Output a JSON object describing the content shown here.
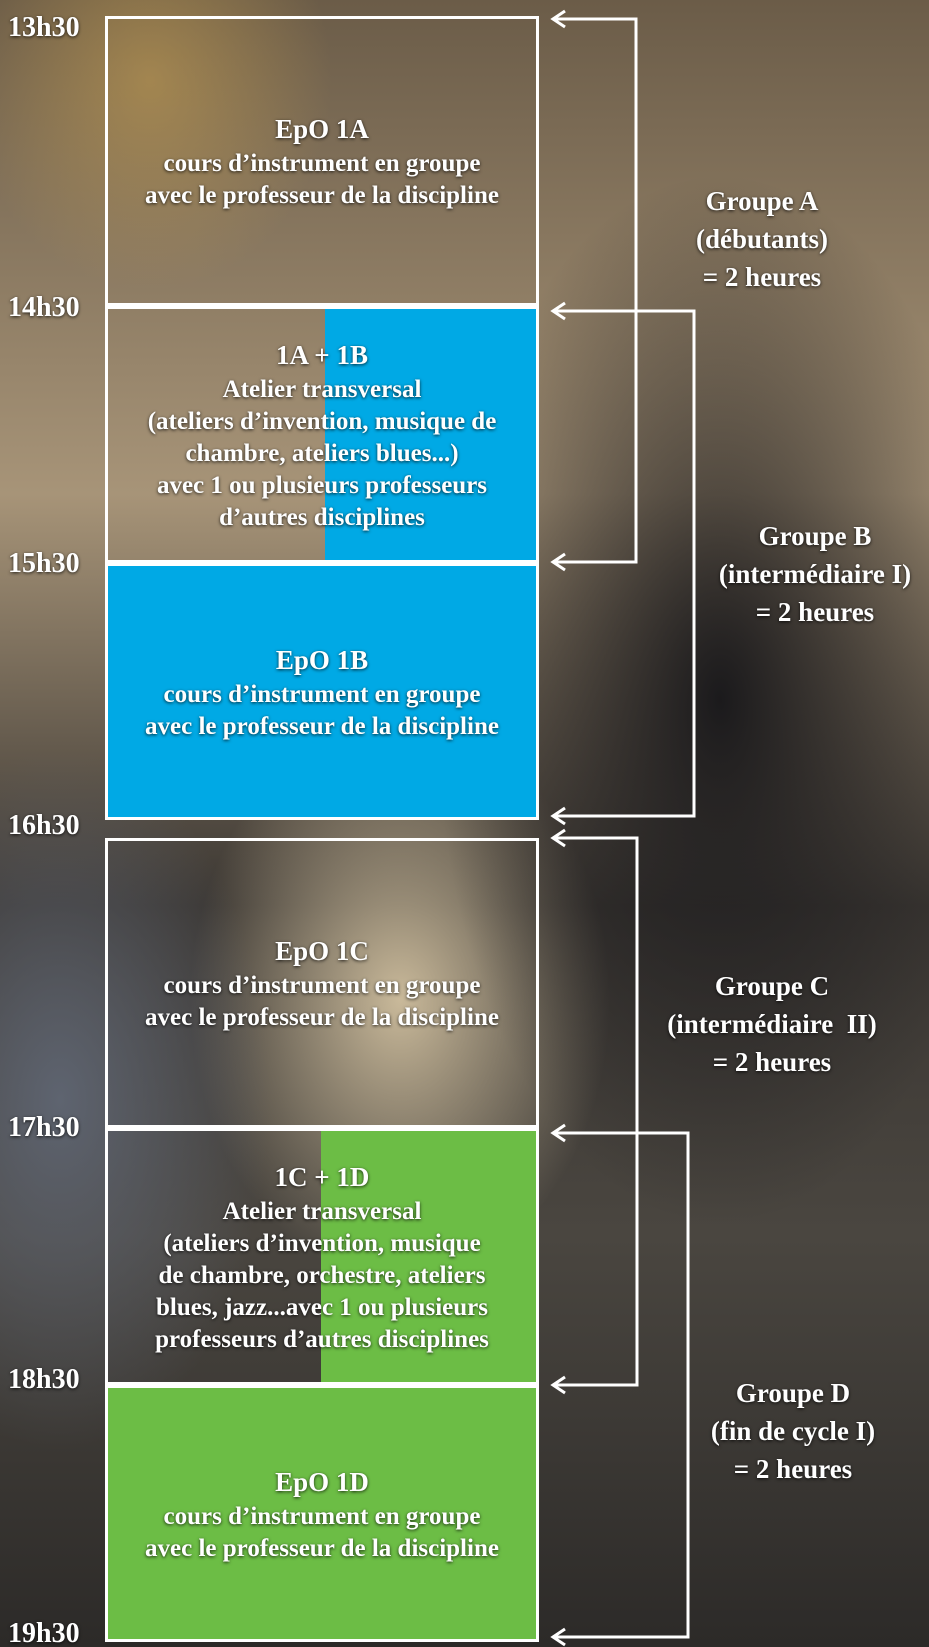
{
  "time_labels": [
    "13h30",
    "14h30",
    "15h30",
    "16h30",
    "17h30",
    "18h30",
    "19h30"
  ],
  "blocks": [
    {
      "title": "EpO 1A",
      "lines": [
        "cours d’instrument en groupe",
        "avec le professeur de la discipline"
      ]
    },
    {
      "title": "1A + 1B",
      "lines": [
        "Atelier transversal",
        "(ateliers d’invention, musique de",
        "chambre, ateliers blues...)",
        "avec 1 ou plusieurs professeurs",
        "d’autres disciplines"
      ]
    },
    {
      "title": "EpO 1B",
      "lines": [
        "cours d’instrument en groupe",
        "avec le professeur de la discipline"
      ]
    },
    {
      "title": "EpO 1C",
      "lines": [
        "cours d’instrument en groupe",
        "avec le professeur de la discipline"
      ]
    },
    {
      "title": "1C + 1D",
      "lines": [
        "Atelier transversal",
        "(ateliers d’invention, musique",
        "de chambre, orchestre, ateliers",
        "blues, jazz...avec 1 ou plusieurs",
        "professeurs d’autres disciplines"
      ]
    },
    {
      "title": "EpO 1D",
      "lines": [
        "cours d’instrument en groupe",
        "avec le professeur de la discipline"
      ]
    }
  ],
  "groups": [
    {
      "name": "Groupe A",
      "lines": [
        "(débutants)",
        "= 2 heures"
      ]
    },
    {
      "name": "Groupe B",
      "lines": [
        "(intermédiaire I)",
        "= 2 heures"
      ]
    },
    {
      "name": "Groupe C",
      "lines": [
        "(intermédiaire  II)",
        "= 2 heures"
      ]
    },
    {
      "name": "Groupe D",
      "lines": [
        "(fin de cycle I)",
        "= 2 heures"
      ]
    }
  ]
}
